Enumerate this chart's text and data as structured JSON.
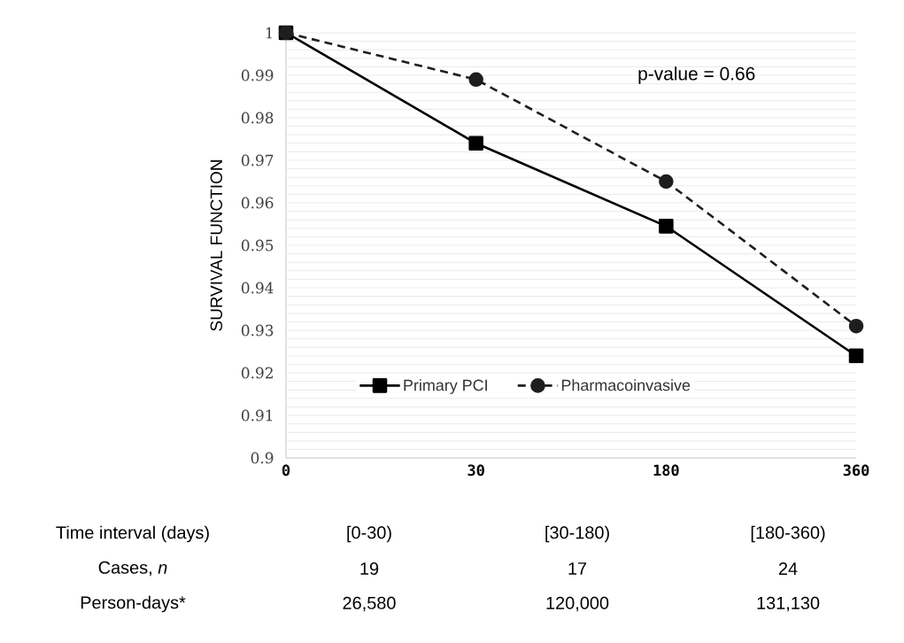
{
  "chart_data": {
    "type": "line",
    "ylabel": "SURVIVAL FUNCTION",
    "categories": [
      "0",
      "30",
      "180",
      "360"
    ],
    "series": [
      {
        "name": "Primary PCI",
        "color": "#000000",
        "marker": "square",
        "line_style": "solid",
        "values": [
          1,
          0.974,
          0.9545,
          0.924
        ]
      },
      {
        "name": "Pharmacoinvasive",
        "color": "#1e1e1e",
        "marker": "circle",
        "line_style": "dashed",
        "values": [
          1,
          0.989,
          0.965,
          0.931
        ]
      }
    ],
    "ylim": [
      0.9,
      1
    ],
    "yticks": [
      0.9,
      0.91,
      0.92,
      0.93,
      0.94,
      0.95,
      0.96,
      0.97,
      0.98,
      0.99,
      1
    ],
    "grid": "y",
    "legend": "bottom",
    "annotations": [
      "p-value = 0.66",
      "Time interval (days)",
      "[0-30)",
      "[30-180)",
      "[180-360)",
      "Cases, *n*",
      "19",
      "17",
      "24",
      "Person-days*",
      "26,580",
      "120,000",
      "131,130"
    ]
  }
}
